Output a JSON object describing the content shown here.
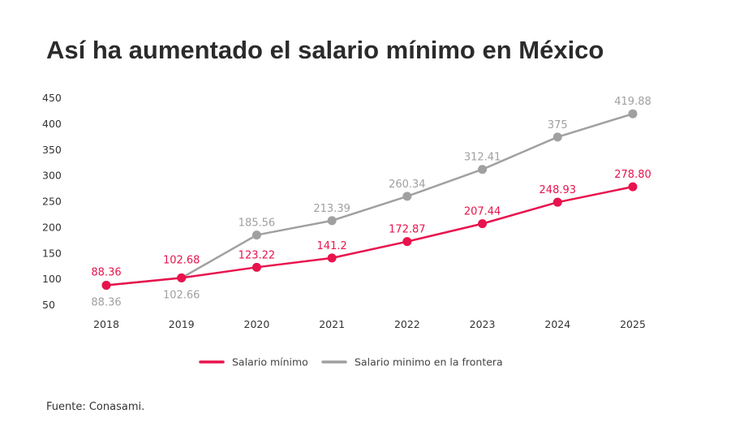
{
  "title": "Así ha aumentado el salario mínimo en México",
  "source": "Fuente: Conasami.",
  "colors": {
    "minimo": "#e8134d",
    "frontera": "#a0a0a0"
  },
  "chart_data": {
    "type": "line",
    "title": "Así ha aumentado el salario mínimo en México",
    "xlabel": "",
    "ylabel": "",
    "categories": [
      "2018",
      "2019",
      "2020",
      "2021",
      "2022",
      "2023",
      "2024",
      "2025"
    ],
    "yticks": [
      "450",
      "400",
      "350",
      "300",
      "250",
      "200",
      "150",
      "100",
      "50"
    ],
    "ylim": [
      50,
      450
    ],
    "grid": false,
    "legend_position": "bottom",
    "series": [
      {
        "name": "Salario mínimo",
        "color": "#e8134d",
        "values": [
          88.36,
          102.68,
          123.22,
          141.2,
          172.87,
          207.44,
          248.93,
          278.8
        ],
        "labels": [
          "88.36",
          "102.68",
          "123.22",
          "141.2",
          "172.87",
          "207.44",
          "248.93",
          "278.80"
        ]
      },
      {
        "name": "Salario minimo en la frontera",
        "color": "#a0a0a0",
        "values": [
          88.36,
          102.66,
          185.56,
          213.39,
          260.34,
          312.41,
          375,
          419.88
        ],
        "labels": [
          "88.36",
          "102.66",
          "185.56",
          "213.39",
          "260.34",
          "312.41",
          "375",
          "419.88"
        ]
      }
    ]
  }
}
